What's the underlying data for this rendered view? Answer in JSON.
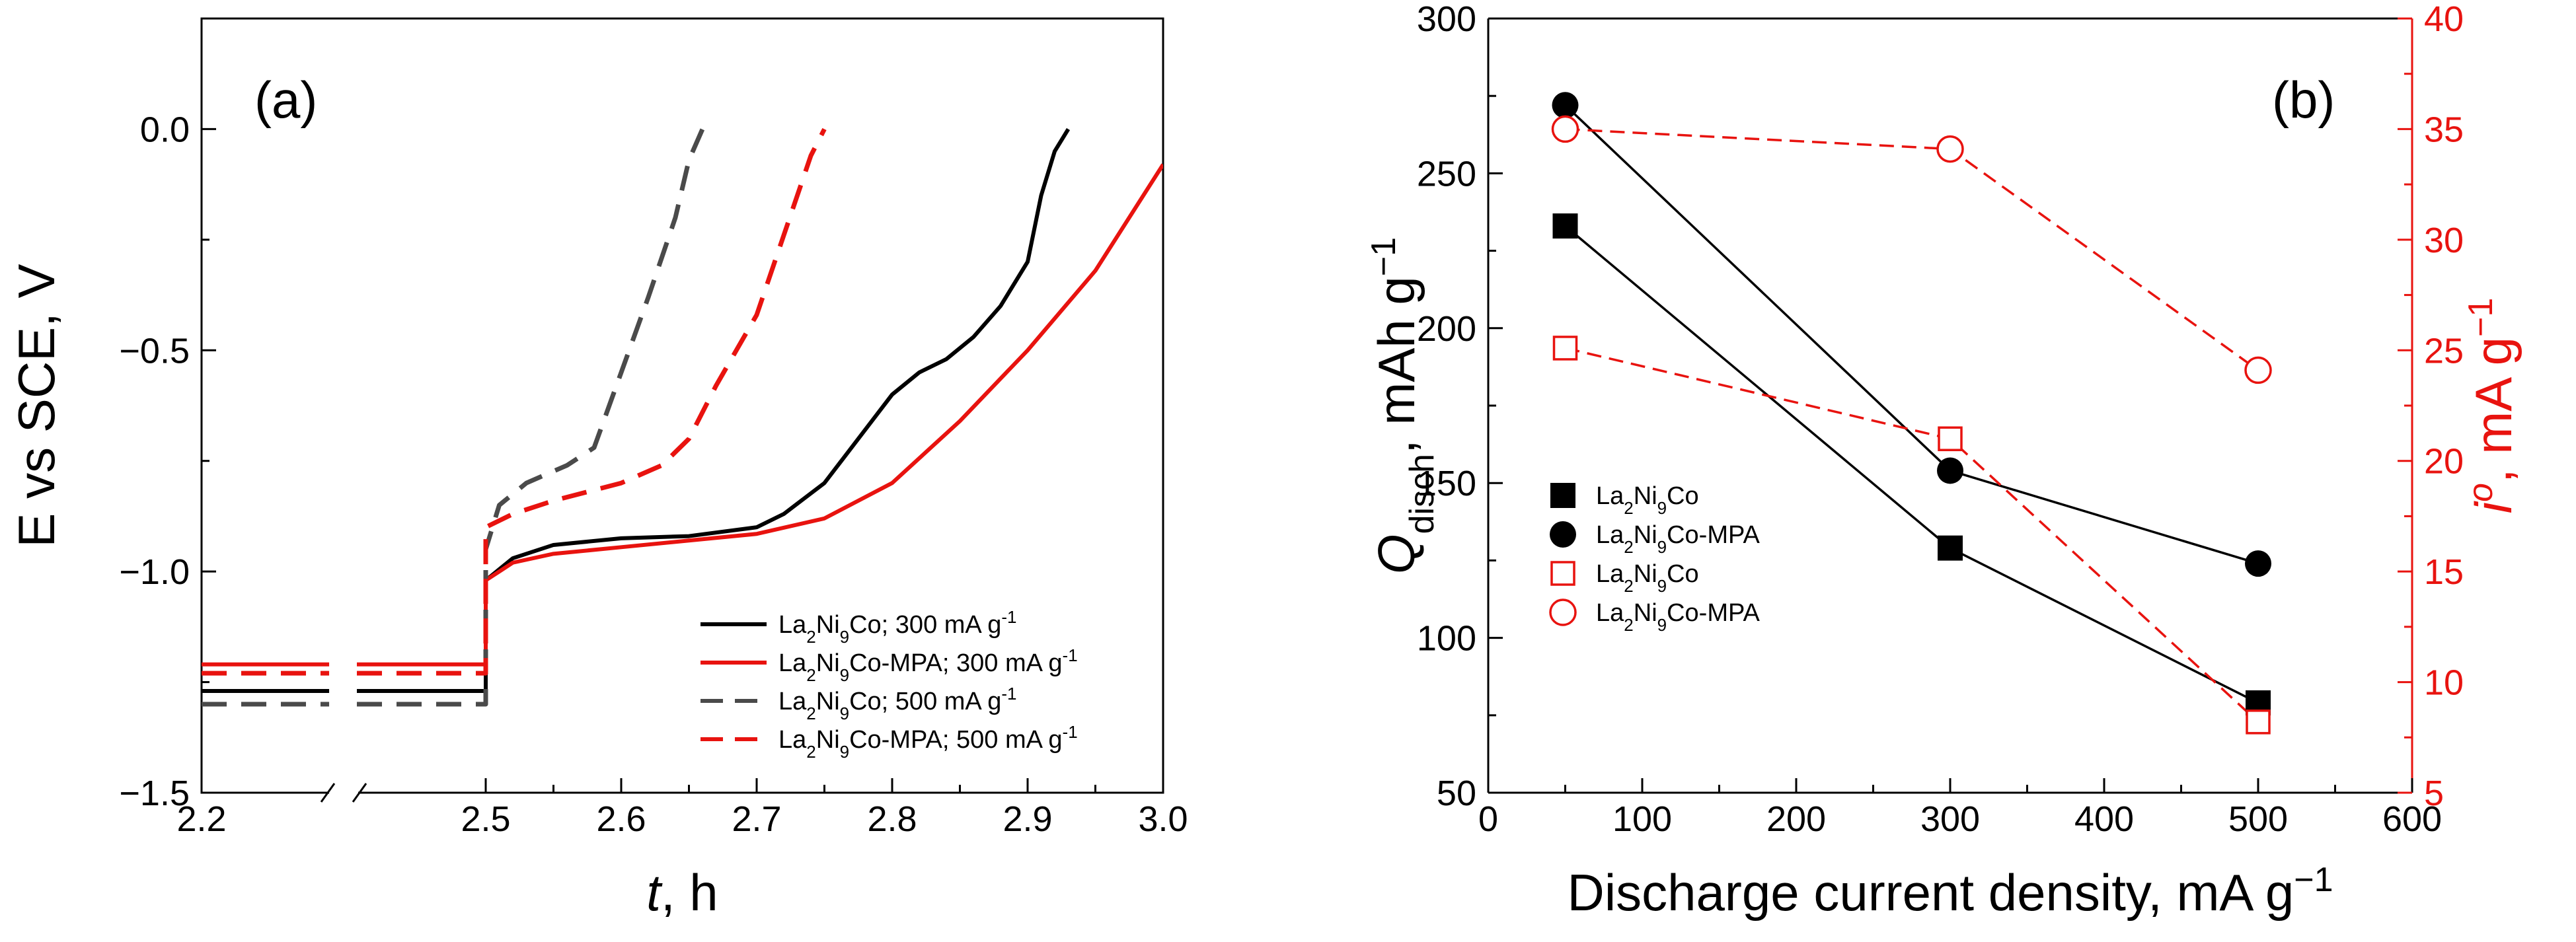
{
  "chart_data": [
    {
      "panel_label": "(a)",
      "type": "line",
      "xlabel_italic": "t",
      "xlabel_rest": ", h",
      "ylabel": "E vs SCE, V",
      "xlim": [
        2.2,
        3.0
      ],
      "ylim": [
        -1.5,
        0.25
      ],
      "x_break": [
        2.3,
        2.4
      ],
      "xticks": [
        2.2,
        2.5,
        2.6,
        2.7,
        2.8,
        2.9,
        3.0
      ],
      "xtick_labels": [
        "2.2",
        "2.5",
        "2.6",
        "2.7",
        "2.8",
        "2.9",
        "3.0"
      ],
      "yticks": [
        -1.5,
        -1.0,
        -0.5,
        0.0
      ],
      "ytick_labels": [
        "−1.5",
        "−1.0",
        "−0.5",
        "0.0"
      ],
      "legend_position": "bottom-right",
      "series": [
        {
          "name": "La2Ni9Co; 300 mA g-1",
          "label_parts": [
            "La",
            "2",
            "Ni",
            "9",
            "Co; 300 mA g",
            "-1"
          ],
          "color": "#000000",
          "dash": "solid",
          "x": [
            2.2,
            2.3,
            2.4,
            2.5,
            2.5,
            2.5,
            2.52,
            2.55,
            2.6,
            2.65,
            2.7,
            2.72,
            2.75,
            2.78,
            2.8,
            2.82,
            2.84,
            2.86,
            2.88,
            2.9,
            2.91,
            2.92,
            2.93
          ],
          "y": [
            -1.27,
            -1.27,
            -1.27,
            -1.27,
            -1.15,
            -1.02,
            -0.97,
            -0.94,
            -0.925,
            -0.92,
            -0.9,
            -0.87,
            -0.8,
            -0.68,
            -0.6,
            -0.55,
            -0.52,
            -0.47,
            -0.4,
            -0.3,
            -0.15,
            -0.05,
            0.0
          ]
        },
        {
          "name": "La2Ni9Co-MPA; 300 mA g-1",
          "label_parts": [
            "La",
            "2",
            "Ni",
            "9",
            "Co-MPA; 300 mA g",
            "-1"
          ],
          "color": "#e8130f",
          "dash": "solid",
          "x": [
            2.2,
            2.3,
            2.4,
            2.5,
            2.5,
            2.5,
            2.52,
            2.55,
            2.6,
            2.65,
            2.7,
            2.75,
            2.8,
            2.85,
            2.9,
            2.95,
            3.0
          ],
          "y": [
            -1.21,
            -1.21,
            -1.21,
            -1.21,
            -1.1,
            -1.02,
            -0.98,
            -0.96,
            -0.945,
            -0.93,
            -0.915,
            -0.88,
            -0.8,
            -0.66,
            -0.5,
            -0.32,
            -0.08
          ]
        },
        {
          "name": "La2Ni9Co; 500 mA g-1",
          "label_parts": [
            "La",
            "2",
            "Ni",
            "9",
            "Co; 500 mA g",
            "-1"
          ],
          "color": "#4a4a4a",
          "dash": "dashed",
          "x": [
            2.2,
            2.3,
            2.4,
            2.5,
            2.5,
            2.51,
            2.53,
            2.56,
            2.58,
            2.6,
            2.62,
            2.64,
            2.65,
            2.66
          ],
          "y": [
            -1.3,
            -1.3,
            -1.3,
            -1.3,
            -0.95,
            -0.85,
            -0.8,
            -0.76,
            -0.72,
            -0.55,
            -0.38,
            -0.2,
            -0.07,
            0.0
          ]
        },
        {
          "name": "La2Ni9Co-MPA; 500 mA g-1",
          "label_parts": [
            "La",
            "2",
            "Ni",
            "9",
            "Co-MPA; 500 mA g",
            "-1"
          ],
          "color": "#e8130f",
          "dash": "dashed",
          "x": [
            2.2,
            2.3,
            2.4,
            2.5,
            2.5,
            2.52,
            2.55,
            2.6,
            2.63,
            2.65,
            2.67,
            2.7,
            2.72,
            2.74,
            2.75
          ],
          "y": [
            -1.23,
            -1.23,
            -1.23,
            -1.23,
            -0.9,
            -0.87,
            -0.84,
            -0.8,
            -0.76,
            -0.7,
            -0.58,
            -0.42,
            -0.24,
            -0.06,
            0.0
          ]
        }
      ]
    },
    {
      "panel_label": "(b)",
      "type": "line",
      "xlabel": "Discharge current density, mA g",
      "xlabel_sup": "−1",
      "ylabel_left_parts": [
        "Q",
        "disch",
        ", mAh g",
        "−1"
      ],
      "ylabel_right_parts": [
        "i",
        "o",
        ", mA g",
        "−1"
      ],
      "xlim": [
        0,
        600
      ],
      "ylim_left": [
        50,
        300
      ],
      "ylim_right": [
        5,
        40
      ],
      "xticks": [
        0,
        100,
        200,
        300,
        400,
        500,
        600
      ],
      "xtick_labels": [
        "0",
        "100",
        "200",
        "300",
        "400",
        "500",
        "600"
      ],
      "yticks_left": [
        50,
        100,
        150,
        200,
        250,
        300
      ],
      "ytick_labels_left": [
        "50",
        "100",
        "150",
        "200",
        "250",
        "300"
      ],
      "yticks_right": [
        5,
        10,
        15,
        20,
        25,
        30,
        35,
        40
      ],
      "ytick_labels_right": [
        "5",
        "10",
        "15",
        "20",
        "25",
        "30",
        "35",
        "40"
      ],
      "left_axis_color": "#000000",
      "right_axis_color": "#e8130f",
      "legend_position": "bottom-left",
      "series": [
        {
          "name": "La2Ni9Co",
          "axis": "left",
          "label_parts": [
            "La",
            "2",
            "Ni",
            "9",
            "Co"
          ],
          "marker": "square-filled",
          "color": "#000000",
          "dash": "solid",
          "x": [
            50,
            300,
            500
          ],
          "y": [
            233,
            129,
            79
          ]
        },
        {
          "name": "La2Ni9Co-MPA",
          "axis": "left",
          "label_parts": [
            "La",
            "2",
            "Ni",
            "9",
            "Co-MPA"
          ],
          "marker": "circle-filled",
          "color": "#000000",
          "dash": "solid",
          "x": [
            50,
            300,
            500
          ],
          "y": [
            272,
            154,
            124
          ]
        },
        {
          "name": "La2Ni9Co",
          "axis": "right",
          "label_parts": [
            "La",
            "2",
            "Ni",
            "9",
            "Co"
          ],
          "marker": "square-open",
          "color": "#e8130f",
          "dash": "dashed",
          "x": [
            50,
            300,
            500
          ],
          "y": [
            25.1,
            21.0,
            8.2
          ]
        },
        {
          "name": "La2Ni9Co-MPA",
          "axis": "right",
          "label_parts": [
            "La",
            "2",
            "Ni",
            "9",
            "Co-MPA"
          ],
          "marker": "circle-open",
          "color": "#e8130f",
          "dash": "dashed",
          "x": [
            50,
            300,
            500
          ],
          "y": [
            35.0,
            34.1,
            24.1
          ]
        }
      ]
    }
  ]
}
